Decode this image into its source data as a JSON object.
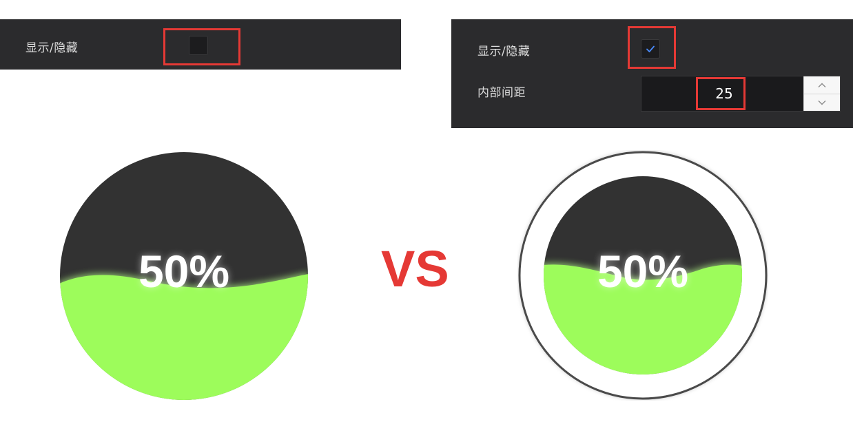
{
  "left_panel": {
    "visibility_label": "显示/隐藏",
    "visibility_checked": false
  },
  "right_panel": {
    "visibility_label": "显示/隐藏",
    "visibility_checked": true,
    "padding_label": "内部间距",
    "padding_value": "25"
  },
  "comparison_label": "VS",
  "left_gauge": {
    "percent_text": "50%",
    "fill_level": 0.5
  },
  "right_gauge": {
    "percent_text": "50%",
    "fill_level": 0.5
  },
  "colors": {
    "panel_bg": "#2b2b2d",
    "highlight": "#e53935",
    "liquid": "#9dfc5b",
    "gauge_bg": "#323232",
    "outer_ring": "#4a4a4a",
    "check": "#4a8cff"
  },
  "icons": {
    "checkmark": "check-icon",
    "increment": "chevron-up-icon",
    "decrement": "chevron-down-icon"
  }
}
